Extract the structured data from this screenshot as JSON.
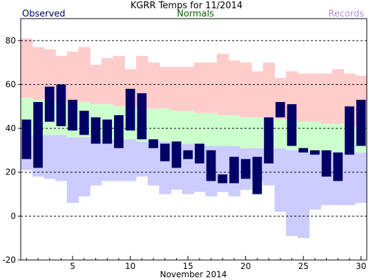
{
  "chart_data": {
    "type": "bar",
    "title": "KGRR Temps for 11/2014",
    "xlabel": "November 2014",
    "legend": {
      "observed": "Observed",
      "normals": "Normals",
      "records": "Records"
    },
    "colors": {
      "observed": "#000066",
      "observed_label": "#000066",
      "normals_fill": "#ccffcc",
      "normals_label": "#006600",
      "records_high_fill": "#ffcccc",
      "records_low_fill": "#ccccff",
      "records_label": "#b38fd6",
      "grid": "#000000"
    },
    "ylim": [
      -20,
      90
    ],
    "yticks": [
      -20,
      0,
      20,
      40,
      60,
      80
    ],
    "xticks": [
      5,
      10,
      15,
      20,
      25,
      30
    ],
    "grid_dashed_at": [
      0,
      20,
      40,
      60,
      80
    ],
    "days": [
      1,
      2,
      3,
      4,
      5,
      6,
      7,
      8,
      9,
      10,
      11,
      12,
      13,
      14,
      15,
      16,
      17,
      18,
      19,
      20,
      21,
      22,
      23,
      24,
      25,
      26,
      27,
      28,
      29,
      30
    ],
    "record_high": [
      81,
      77,
      76,
      73,
      75,
      77,
      69,
      72,
      73,
      67,
      73,
      70,
      68,
      68,
      68,
      70,
      70,
      74,
      71,
      70,
      66,
      70,
      63,
      66,
      65,
      65,
      65,
      67,
      65,
      64
    ],
    "normal_high": [
      54,
      53,
      53,
      52,
      52,
      52,
      51,
      51,
      50,
      50,
      49,
      49,
      49,
      48,
      48,
      47,
      47,
      46,
      46,
      45,
      45,
      45,
      44,
      44,
      43,
      43,
      42,
      42,
      41,
      41
    ],
    "normal_low": [
      37,
      37,
      37,
      37,
      36,
      36,
      35,
      35,
      35,
      35,
      34,
      34,
      34,
      33,
      33,
      33,
      32,
      32,
      32,
      31,
      31,
      31,
      31,
      30,
      30,
      30,
      30,
      29,
      29,
      29
    ],
    "record_low": [
      21,
      18,
      17,
      16,
      6,
      9,
      14,
      16,
      16,
      16,
      18,
      14,
      10,
      12,
      10,
      11,
      9,
      11,
      9,
      12,
      16,
      14,
      2,
      -9,
      -10,
      3,
      5,
      5,
      5,
      6
    ],
    "observed_high": [
      44,
      52,
      59,
      60,
      53,
      48,
      45,
      44,
      46,
      58,
      56,
      35,
      33,
      34,
      30,
      33,
      30,
      19,
      27,
      26,
      27,
      45,
      52,
      51,
      31,
      30,
      30,
      29,
      50,
      53
    ],
    "observed_low": [
      26,
      22,
      43,
      41,
      39,
      37,
      33,
      33,
      31,
      39,
      35,
      31,
      25,
      22,
      26,
      24,
      16,
      15,
      15,
      17,
      10,
      24,
      45,
      32,
      29,
      28,
      18,
      16,
      28,
      32
    ]
  }
}
